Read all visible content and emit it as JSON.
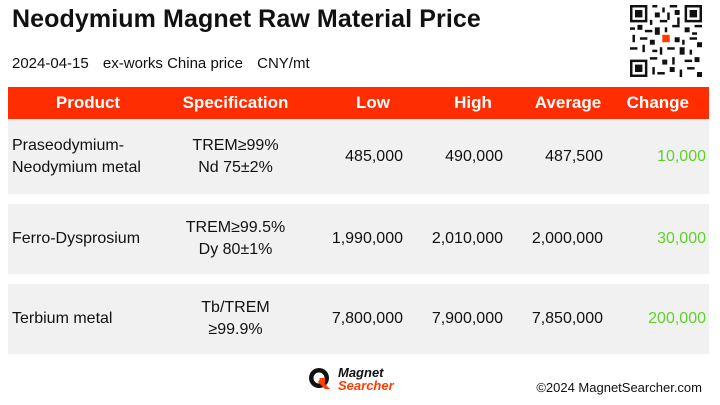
{
  "header": {
    "title": "Neodymium Magnet Raw Material Price",
    "date": "2024-04-15",
    "basis": "ex-works China price",
    "unit": "CNY/mt"
  },
  "table": {
    "columns": [
      "Product",
      "Specification",
      "Low",
      "High",
      "Average",
      "Change"
    ],
    "rows": [
      {
        "product_lines": [
          "Praseodymium-",
          "Neodymium metal"
        ],
        "spec_lines": [
          "TREM≥99%",
          "Nd 75±2%"
        ],
        "low": "485,000",
        "high": "490,000",
        "average": "487,500",
        "change": "10,000"
      },
      {
        "product_lines": [
          "Ferro-Dysprosium"
        ],
        "spec_lines": [
          "TREM≥99.5%",
          "Dy 80±1%"
        ],
        "low": "1,990,000",
        "high": "2,010,000",
        "average": "2,000,000",
        "change": "30,000"
      },
      {
        "product_lines": [
          "Terbium metal"
        ],
        "spec_lines": [
          "Tb/TREM",
          "≥99.9%"
        ],
        "low": "7,800,000",
        "high": "7,900,000",
        "average": "7,850,000",
        "change": "200,000"
      }
    ]
  },
  "footer": {
    "logo_line1": "Magnet",
    "logo_line2": "Searcher",
    "copyright": "©2024 MagnetSearcher.com"
  },
  "colors": {
    "header_bg": "#ff2d00",
    "row_bg": "#f1f1f1",
    "change_positive": "#5fd22a",
    "brand_orange": "#ff3d00"
  },
  "icons": [
    "qr-code-icon",
    "magnet-searcher-logo-icon"
  ]
}
